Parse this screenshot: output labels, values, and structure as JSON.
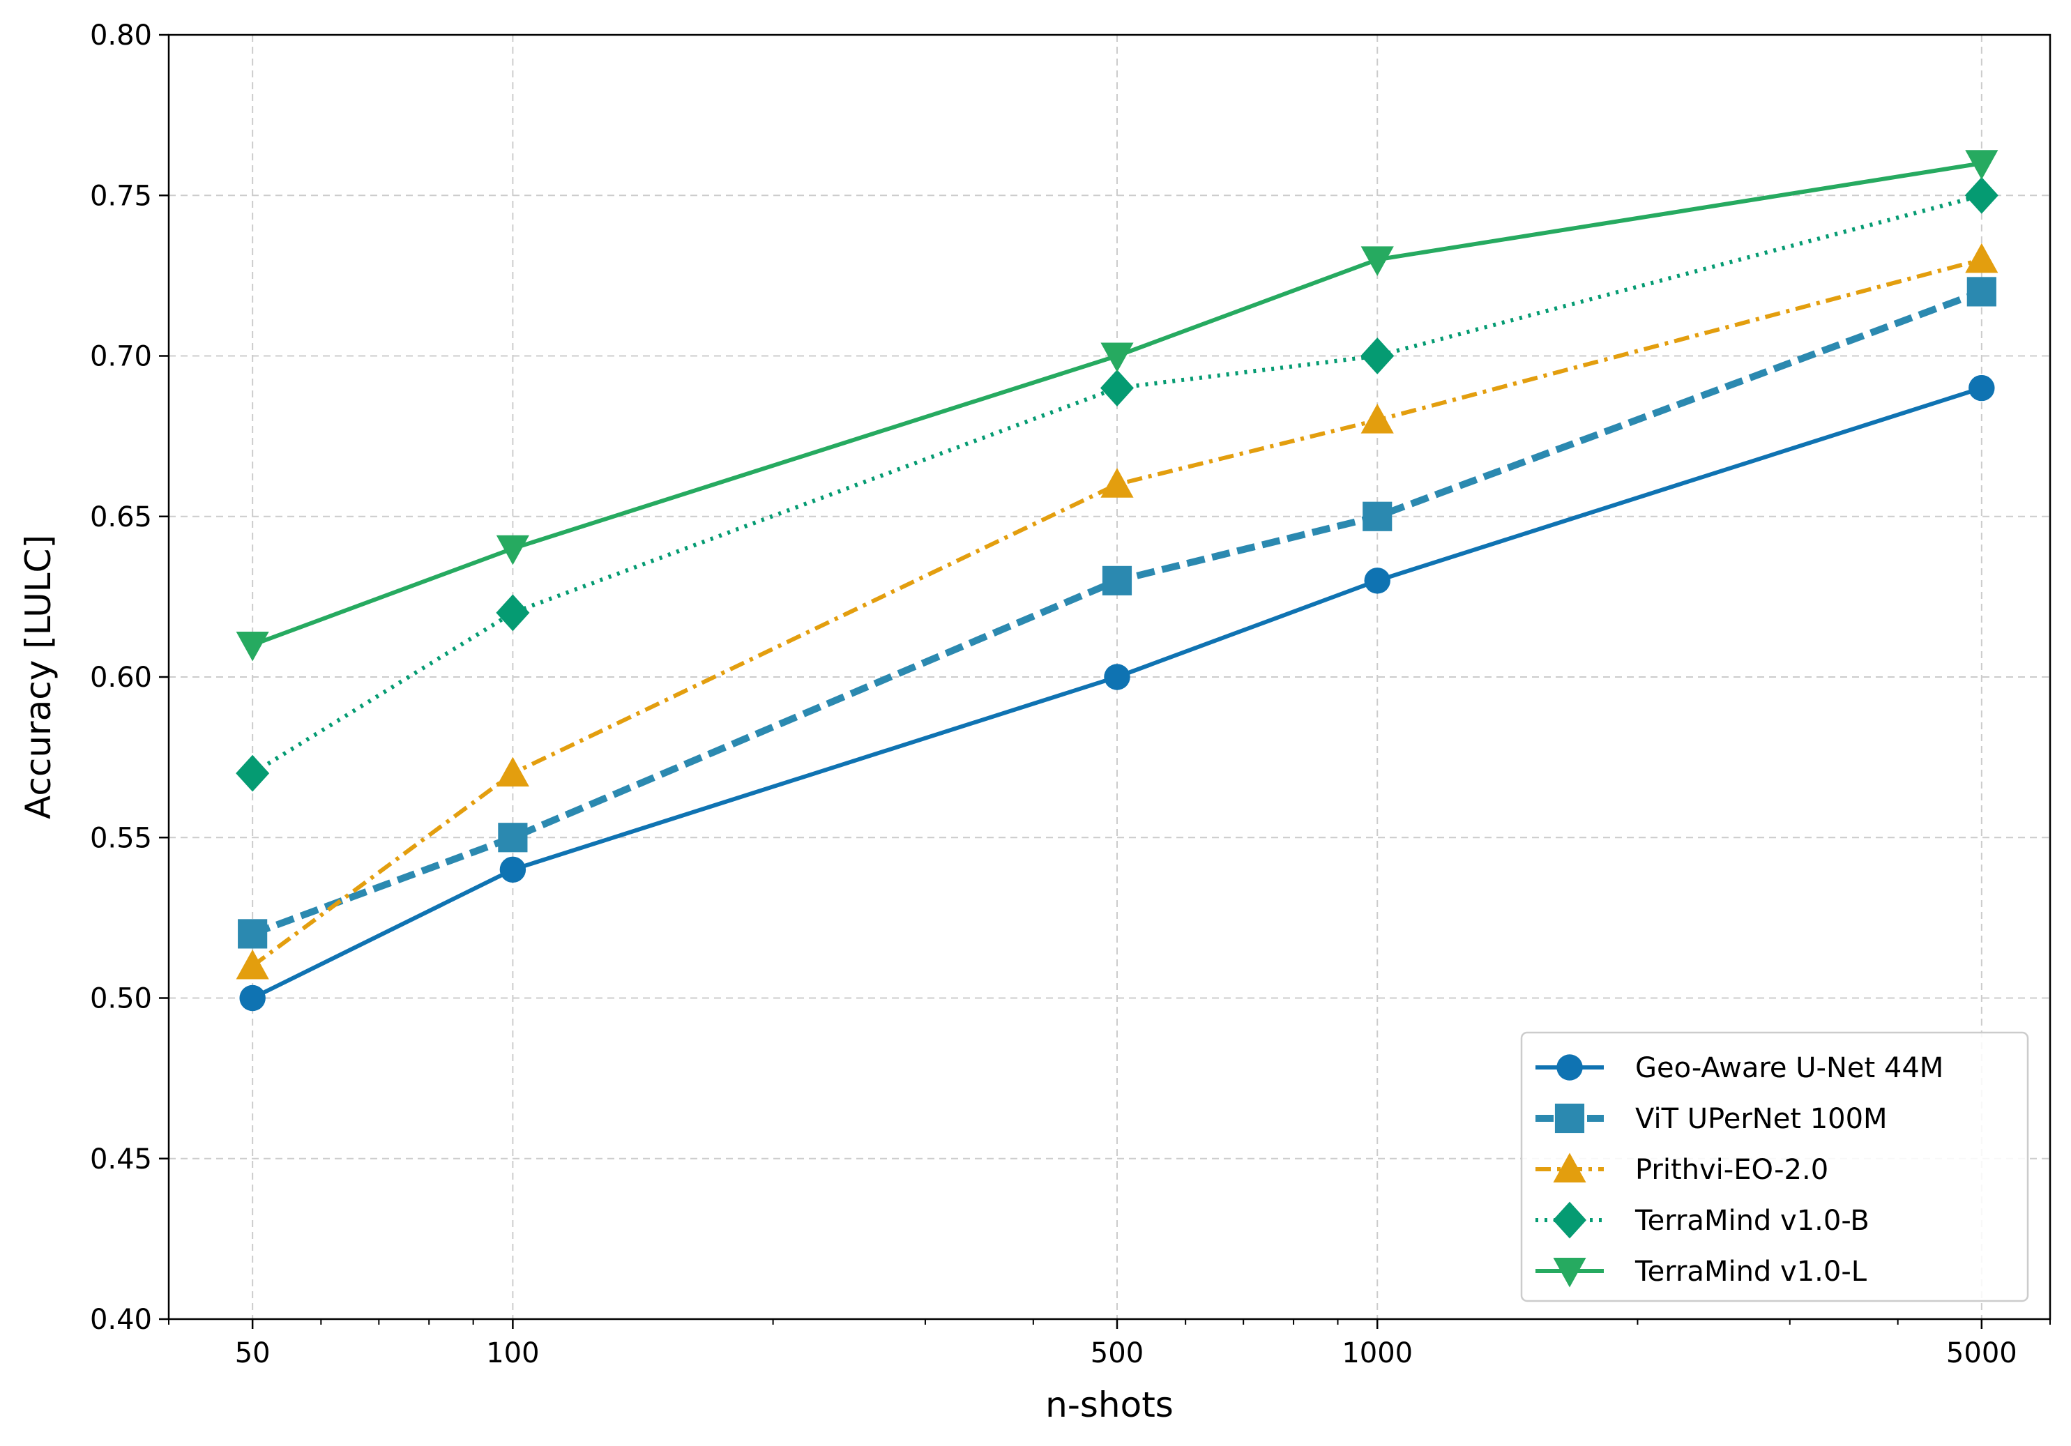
{
  "chart_data": {
    "type": "line",
    "title": "",
    "xlabel": "n-shots",
    "ylabel": "Accuracy [LULC]",
    "xscale": "log",
    "x": [
      50,
      100,
      500,
      1000,
      5000
    ],
    "xtick_labels": [
      "50",
      "100",
      "500",
      "1000",
      "5000"
    ],
    "ylim": [
      0.4,
      0.8
    ],
    "yticks": [
      0.4,
      0.45,
      0.5,
      0.55,
      0.6,
      0.65,
      0.7,
      0.75,
      0.8
    ],
    "ytick_labels": [
      "0.40",
      "0.45",
      "0.50",
      "0.55",
      "0.60",
      "0.65",
      "0.70",
      "0.75",
      "0.80"
    ],
    "grid": true,
    "legend_position": "bottom-right",
    "series": [
      {
        "name": "Geo-Aware U-Net 44M",
        "values": [
          0.5,
          0.54,
          0.6,
          0.63,
          0.69
        ],
        "color": "#0f73b2",
        "marker": "circle",
        "line_style": "solid"
      },
      {
        "name": "ViT UPerNet 100M",
        "values": [
          0.52,
          0.55,
          0.63,
          0.65,
          0.72
        ],
        "color": "#2b89b0",
        "marker": "square",
        "line_style": "dashed"
      },
      {
        "name": "Prithvi-EO-2.0",
        "values": [
          0.51,
          0.57,
          0.66,
          0.68,
          0.73
        ],
        "color": "#e39e0e",
        "marker": "triangle-up",
        "line_style": "dashdot"
      },
      {
        "name": "TerraMind v1.0-B",
        "values": [
          0.57,
          0.62,
          0.69,
          0.7,
          0.75
        ],
        "color": "#059b72",
        "marker": "diamond",
        "line_style": "dotted"
      },
      {
        "name": "TerraMind v1.0-L",
        "values": [
          0.61,
          0.64,
          0.7,
          0.73,
          0.76
        ],
        "color": "#26aa60",
        "marker": "triangle-down",
        "line_style": "solid"
      }
    ]
  }
}
